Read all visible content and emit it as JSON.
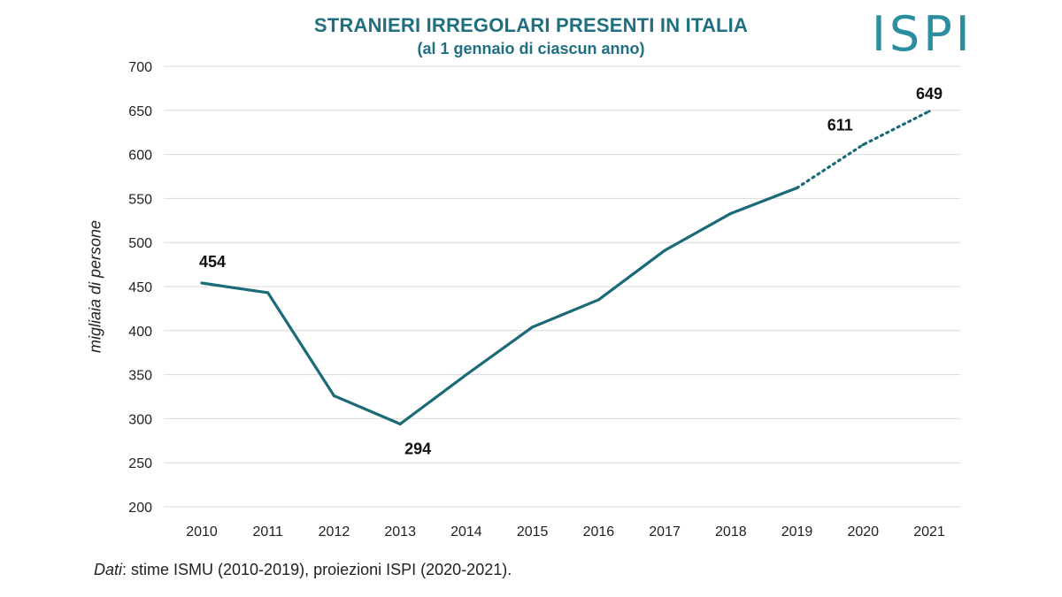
{
  "header": {
    "title": "STRANIERI IRREGOLARI PRESENTI IN ITALIA",
    "subtitle": "(al 1 gennaio di ciascun anno)",
    "logo_text": "ISPI"
  },
  "footer": {
    "source_prefix": "Dati",
    "source_text": ": stime ISMU (2010-2019), proiezioni ISPI (2020-2021)."
  },
  "colors": {
    "accent": "#1f6f80",
    "line": "#1b6a78",
    "grid": "#d9d9d9"
  },
  "chart_data": {
    "type": "line",
    "title": "STRANIERI IRREGOLARI PRESENTI IN ITALIA",
    "subtitle": "(al 1 gennaio di ciascun anno)",
    "xlabel": "",
    "ylabel": "migliaia di persone",
    "ylim": [
      200,
      700
    ],
    "yticks": [
      200,
      250,
      300,
      350,
      400,
      450,
      500,
      550,
      600,
      650,
      700
    ],
    "categories": [
      "2010",
      "2011",
      "2012",
      "2013",
      "2014",
      "2015",
      "2016",
      "2017",
      "2018",
      "2019",
      "2020",
      "2021"
    ],
    "series": [
      {
        "values": [
          454,
          443,
          326,
          294,
          350,
          404,
          435,
          491,
          533,
          562,
          611,
          649
        ],
        "style_note": "solid 2010-2019, dotted 2019-2021",
        "solid_until_index": 9
      }
    ],
    "data_labels": [
      {
        "index": 0,
        "text": "454",
        "position": "above"
      },
      {
        "index": 3,
        "text": "294",
        "position": "below"
      },
      {
        "index": 10,
        "text": "611",
        "position": "above-left"
      },
      {
        "index": 11,
        "text": "649",
        "position": "above"
      }
    ],
    "grid": true,
    "legend": "none"
  }
}
